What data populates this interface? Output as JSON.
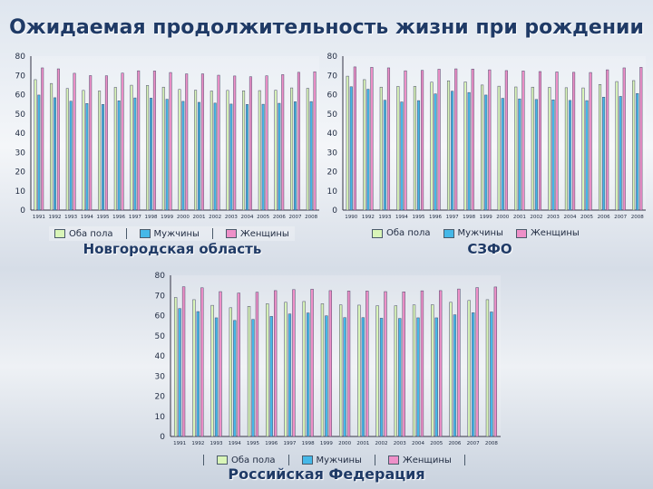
{
  "page": {
    "title": "Ожидаемая продолжительность жизни при рождении"
  },
  "colors": {
    "both": "#d9f5b8",
    "men": "#45b8e8",
    "women": "#ee90c8",
    "frame": "#4a4a6a"
  },
  "chart_data": [
    {
      "type": "bar",
      "caption": "Новгородская область",
      "categories": [
        "1991",
        "1992",
        "1993",
        "1994",
        "1995",
        "1996",
        "1997",
        "1998",
        "1999",
        "2000",
        "2001",
        "2002",
        "2003",
        "2004",
        "2005",
        "2006",
        "2007",
        "2008"
      ],
      "ylim": [
        0,
        80
      ],
      "yticks": [
        "0",
        "10",
        "20",
        "30",
        "40",
        "50",
        "60",
        "70",
        "80"
      ],
      "series": [
        {
          "name": "Оба пола",
          "values": [
            67.8,
            65.8,
            63.2,
            62.2,
            61.9,
            63.8,
            64.9,
            64.8,
            63.9,
            62.7,
            62.3,
            61.9,
            62.2,
            62.0,
            62.1,
            62.3,
            63.5,
            63.3
          ]
        },
        {
          "name": "Мужчины",
          "values": [
            59.8,
            58.4,
            56.6,
            55.4,
            54.9,
            56.8,
            58.3,
            58.2,
            57.6,
            56.5,
            56.0,
            55.6,
            55.1,
            54.9,
            55.0,
            55.5,
            56.3,
            56.4
          ]
        },
        {
          "name": "Женщины",
          "values": [
            73.9,
            73.4,
            71.1,
            69.9,
            69.8,
            71.2,
            72.4,
            72.3,
            71.5,
            70.8,
            70.8,
            70.1,
            69.7,
            69.3,
            69.8,
            70.4,
            71.6,
            71.9
          ]
        }
      ]
    },
    {
      "type": "bar",
      "caption": "СЗФО",
      "categories": [
        "1990",
        "1992",
        "1993",
        "1994",
        "1995",
        "1996",
        "1997",
        "1998",
        "1999",
        "2000",
        "2001",
        "2002",
        "2003",
        "2004",
        "2005",
        "2006",
        "2007",
        "2008"
      ],
      "ylim": [
        0,
        80
      ],
      "yticks": [
        "0",
        "10",
        "20",
        "30",
        "40",
        "50",
        "60",
        "70",
        "80"
      ],
      "series": [
        {
          "name": "Оба пола",
          "values": [
            69.6,
            67.8,
            63.9,
            64.3,
            64.3,
            66.5,
            67.2,
            66.6,
            65.0,
            64.4,
            64.0,
            63.9,
            63.8,
            63.6,
            63.5,
            65.3,
            66.8,
            67.3
          ]
        },
        {
          "name": "Мужчины",
          "values": [
            64.1,
            62.8,
            57.1,
            56.2,
            56.9,
            60.4,
            61.8,
            61.1,
            59.8,
            58.1,
            57.8,
            57.5,
            57.3,
            57.0,
            56.9,
            58.7,
            59.1,
            60.6
          ]
        },
        {
          "name": "Женщины",
          "values": [
            74.4,
            74.2,
            73.9,
            72.4,
            72.6,
            73.2,
            73.4,
            73.3,
            72.9,
            72.5,
            72.3,
            72.0,
            71.8,
            71.6,
            71.5,
            72.9,
            73.9,
            74.2
          ]
        }
      ]
    },
    {
      "type": "bar",
      "caption": "Российская Федерация",
      "categories": [
        "1991",
        "1992",
        "1993",
        "1994",
        "1995",
        "1996",
        "1997",
        "1998",
        "1999",
        "2000",
        "2001",
        "2002",
        "2003",
        "2004",
        "2005",
        "2006",
        "2007",
        "2008"
      ],
      "ylim": [
        0,
        80
      ],
      "yticks": [
        "0",
        "10",
        "20",
        "30",
        "40",
        "50",
        "60",
        "70",
        "80"
      ],
      "series": [
        {
          "name": "Оба пола",
          "values": [
            69.0,
            67.9,
            65.1,
            63.9,
            64.6,
            65.9,
            66.6,
            67.0,
            65.9,
            65.3,
            65.2,
            64.9,
            64.9,
            65.3,
            65.4,
            66.6,
            67.5,
            67.9
          ]
        },
        {
          "name": "Мужчины",
          "values": [
            63.5,
            62.0,
            58.9,
            57.6,
            58.1,
            59.6,
            60.8,
            61.3,
            59.9,
            59.0,
            59.0,
            58.7,
            58.6,
            58.9,
            58.9,
            60.4,
            61.4,
            61.8
          ]
        },
        {
          "name": "Женщины",
          "values": [
            74.3,
            73.8,
            71.9,
            71.2,
            71.6,
            72.4,
            72.9,
            73.1,
            72.4,
            72.2,
            72.2,
            71.9,
            71.8,
            72.3,
            72.4,
            73.2,
            73.9,
            74.2
          ]
        }
      ]
    }
  ]
}
